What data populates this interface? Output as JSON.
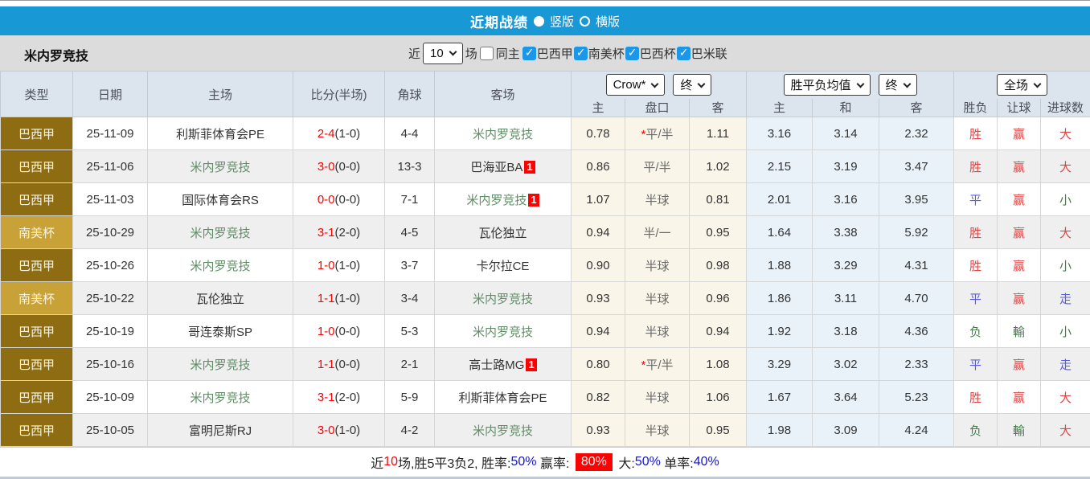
{
  "header": {
    "title": "近期战绩",
    "layout_options": [
      {
        "label": "竖版",
        "selected": true
      },
      {
        "label": "横版",
        "selected": false
      }
    ]
  },
  "filter": {
    "team_name": "米内罗竞技",
    "near_label": "近",
    "games_value": "10",
    "games_label": "场",
    "same_home_label": "同主",
    "same_home_checked": false,
    "competitions": [
      {
        "label": "巴西甲",
        "checked": true
      },
      {
        "label": "南美杯",
        "checked": true
      },
      {
        "label": "巴西杯",
        "checked": true
      },
      {
        "label": "巴米联",
        "checked": true
      }
    ]
  },
  "table": {
    "left_columns": [
      "类型",
      "日期",
      "主场",
      "比分(半场)",
      "角球",
      "客场"
    ],
    "sub_columns": [
      "主",
      "盘口",
      "客",
      "主",
      "和",
      "客",
      "胜负",
      "让球",
      "进球数"
    ],
    "selects": {
      "odds_source": "Crow*",
      "handicap_time": "终",
      "avg_label": "胜平负均值",
      "avg_time": "终",
      "scope": "全场"
    },
    "rows": [
      {
        "type": "巴西甲",
        "type_style": "league",
        "date": "25-11-09",
        "home": {
          "name": "利斯菲体育会PE",
          "green": false,
          "badge": null
        },
        "score": "2-4",
        "half": "(1-0)",
        "corners": "4-4",
        "away": {
          "name": "米内罗竞技",
          "green": true,
          "badge": null
        },
        "handicap": {
          "home": "0.78",
          "line": "平/半",
          "star": true,
          "away": "1.11"
        },
        "odds": {
          "home": "3.16",
          "draw": "3.14",
          "away": "2.32"
        },
        "results": [
          {
            "text": "胜",
            "color": "red"
          },
          {
            "text": "赢",
            "color": "red"
          },
          {
            "text": "大",
            "color": "red"
          }
        ]
      },
      {
        "type": "巴西甲",
        "type_style": "league",
        "date": "25-11-06",
        "home": {
          "name": "米内罗竞技",
          "green": true,
          "badge": null
        },
        "score": "3-0",
        "half": "(0-0)",
        "corners": "13-3",
        "away": {
          "name": "巴海亚BA",
          "green": false,
          "badge": "1"
        },
        "handicap": {
          "home": "0.86",
          "line": "平/半",
          "star": false,
          "away": "1.02"
        },
        "odds": {
          "home": "2.15",
          "draw": "3.19",
          "away": "3.47"
        },
        "results": [
          {
            "text": "胜",
            "color": "red"
          },
          {
            "text": "赢",
            "color": "red"
          },
          {
            "text": "大",
            "color": "red"
          }
        ]
      },
      {
        "type": "巴西甲",
        "type_style": "league",
        "date": "25-11-03",
        "home": {
          "name": "国际体育会RS",
          "green": false,
          "badge": null
        },
        "score": "0-0",
        "half": "(0-0)",
        "corners": "7-1",
        "away": {
          "name": "米内罗竞技",
          "green": true,
          "badge": "1"
        },
        "handicap": {
          "home": "1.07",
          "line": "半球",
          "star": false,
          "away": "0.81"
        },
        "odds": {
          "home": "2.01",
          "draw": "3.16",
          "away": "3.95"
        },
        "results": [
          {
            "text": "平",
            "color": "blue"
          },
          {
            "text": "赢",
            "color": "red"
          },
          {
            "text": "小",
            "color": "green"
          }
        ]
      },
      {
        "type": "南美杯",
        "type_style": "cup",
        "date": "25-10-29",
        "home": {
          "name": "米内罗竞技",
          "green": true,
          "badge": null
        },
        "score": "3-1",
        "half": "(2-0)",
        "corners": "4-5",
        "away": {
          "name": "瓦伦独立",
          "green": false,
          "badge": null
        },
        "handicap": {
          "home": "0.94",
          "line": "半/一",
          "star": false,
          "away": "0.95"
        },
        "odds": {
          "home": "1.64",
          "draw": "3.38",
          "away": "5.92"
        },
        "results": [
          {
            "text": "胜",
            "color": "red"
          },
          {
            "text": "赢",
            "color": "red"
          },
          {
            "text": "大",
            "color": "red"
          }
        ]
      },
      {
        "type": "巴西甲",
        "type_style": "league",
        "date": "25-10-26",
        "home": {
          "name": "米内罗竞技",
          "green": true,
          "badge": null
        },
        "score": "1-0",
        "half": "(1-0)",
        "corners": "3-7",
        "away": {
          "name": "卡尔拉CE",
          "green": false,
          "badge": null
        },
        "handicap": {
          "home": "0.90",
          "line": "半球",
          "star": false,
          "away": "0.98"
        },
        "odds": {
          "home": "1.88",
          "draw": "3.29",
          "away": "4.31"
        },
        "results": [
          {
            "text": "胜",
            "color": "red"
          },
          {
            "text": "赢",
            "color": "red"
          },
          {
            "text": "小",
            "color": "green"
          }
        ]
      },
      {
        "type": "南美杯",
        "type_style": "cup",
        "date": "25-10-22",
        "home": {
          "name": "瓦伦独立",
          "green": false,
          "badge": null
        },
        "score": "1-1",
        "half": "(1-0)",
        "corners": "3-4",
        "away": {
          "name": "米内罗竞技",
          "green": true,
          "badge": null
        },
        "handicap": {
          "home": "0.93",
          "line": "半球",
          "star": false,
          "away": "0.96"
        },
        "odds": {
          "home": "1.86",
          "draw": "3.11",
          "away": "4.70"
        },
        "results": [
          {
            "text": "平",
            "color": "blue"
          },
          {
            "text": "赢",
            "color": "red"
          },
          {
            "text": "走",
            "color": "blue"
          }
        ]
      },
      {
        "type": "巴西甲",
        "type_style": "league",
        "date": "25-10-19",
        "home": {
          "name": "哥连泰斯SP",
          "green": false,
          "badge": null
        },
        "score": "1-0",
        "half": "(0-0)",
        "corners": "5-3",
        "away": {
          "name": "米内罗竞技",
          "green": true,
          "badge": null
        },
        "handicap": {
          "home": "0.94",
          "line": "半球",
          "star": false,
          "away": "0.94"
        },
        "odds": {
          "home": "1.92",
          "draw": "3.18",
          "away": "4.36"
        },
        "results": [
          {
            "text": "负",
            "color": "green"
          },
          {
            "text": "輸",
            "color": "green"
          },
          {
            "text": "小",
            "color": "green"
          }
        ]
      },
      {
        "type": "巴西甲",
        "type_style": "league",
        "date": "25-10-16",
        "home": {
          "name": "米内罗竞技",
          "green": true,
          "badge": null
        },
        "score": "1-1",
        "half": "(0-0)",
        "corners": "2-1",
        "away": {
          "name": "高士路MG",
          "green": false,
          "badge": "1"
        },
        "handicap": {
          "home": "0.80",
          "line": "平/半",
          "star": true,
          "away": "1.08"
        },
        "odds": {
          "home": "3.29",
          "draw": "3.02",
          "away": "2.33"
        },
        "results": [
          {
            "text": "平",
            "color": "blue"
          },
          {
            "text": "赢",
            "color": "red"
          },
          {
            "text": "走",
            "color": "blue"
          }
        ]
      },
      {
        "type": "巴西甲",
        "type_style": "league",
        "date": "25-10-09",
        "home": {
          "name": "米内罗竞技",
          "green": true,
          "badge": null
        },
        "score": "3-1",
        "half": "(2-0)",
        "corners": "5-9",
        "away": {
          "name": "利斯菲体育会PE",
          "green": false,
          "badge": null
        },
        "handicap": {
          "home": "0.82",
          "line": "半球",
          "star": false,
          "away": "1.06"
        },
        "odds": {
          "home": "1.67",
          "draw": "3.64",
          "away": "5.23"
        },
        "results": [
          {
            "text": "胜",
            "color": "red"
          },
          {
            "text": "赢",
            "color": "red"
          },
          {
            "text": "大",
            "color": "red"
          }
        ]
      },
      {
        "type": "巴西甲",
        "type_style": "league",
        "date": "25-10-05",
        "home": {
          "name": "富明尼斯RJ",
          "green": false,
          "badge": null
        },
        "score": "3-0",
        "half": "(1-0)",
        "corners": "4-2",
        "away": {
          "name": "米内罗竞技",
          "green": true,
          "badge": null
        },
        "handicap": {
          "home": "0.93",
          "line": "半球",
          "star": false,
          "away": "0.95"
        },
        "odds": {
          "home": "1.98",
          "draw": "3.09",
          "away": "4.24"
        },
        "results": [
          {
            "text": "负",
            "color": "green"
          },
          {
            "text": "輸",
            "color": "green"
          },
          {
            "text": "大",
            "color": "red"
          }
        ]
      }
    ]
  },
  "summary": {
    "parts": [
      {
        "text": "近",
        "style": "plain"
      },
      {
        "text": "10",
        "style": "red"
      },
      {
        "text": "场,胜5平3负2, 胜率:",
        "style": "plain"
      },
      {
        "text": "50%",
        "style": "blue"
      },
      {
        "text": " 赢率: ",
        "style": "plain"
      },
      {
        "text": "80%",
        "style": "badge"
      },
      {
        "text": " 大:",
        "style": "plain"
      },
      {
        "text": "50%",
        "style": "blue"
      },
      {
        "text": " 单率:",
        "style": "plain"
      },
      {
        "text": "40%",
        "style": "blue"
      }
    ]
  },
  "colors": {
    "header_blue": "#1899d5",
    "league_badge": "#8e6d12",
    "cup_badge": "#c8a236",
    "mineiro_green": "#5f8d65",
    "win_red": "#e04545",
    "draw_blue": "#5a5ae0",
    "lose_green": "#3e8048",
    "checkbox_blue": "#1a97e6",
    "handicap_bg": "#faf5e9",
    "odds_bg": "#e9f2f9",
    "score_red": "#ff0000"
  }
}
